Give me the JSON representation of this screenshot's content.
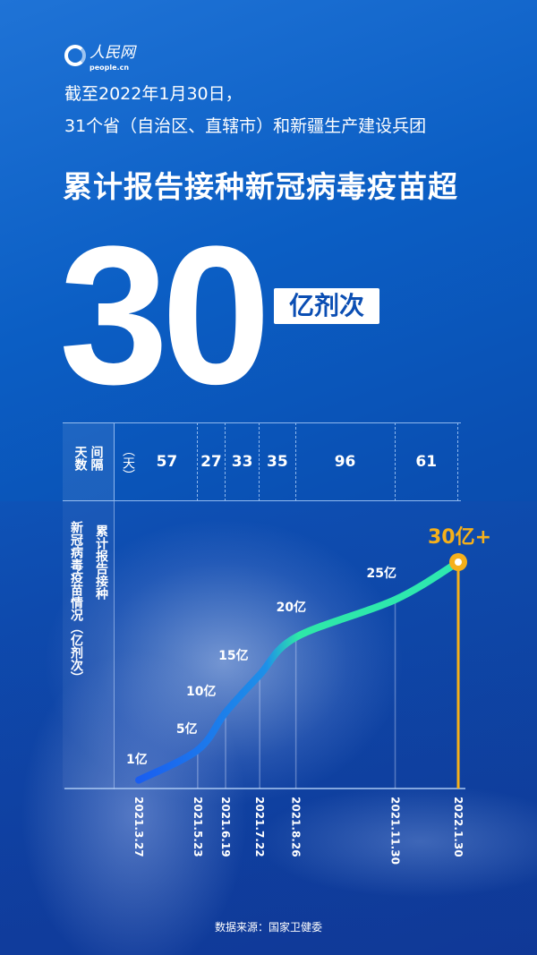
{
  "logo": {
    "name": "人民网",
    "site": "people.cn"
  },
  "header": {
    "line1": "截至2022年1月30日，",
    "line2": "31个省（自治区、直辖市）和新疆生产建设兵团",
    "headline": "累计报告接种新冠病毒疫苗超",
    "big_number": "30",
    "badge": "亿剂次"
  },
  "table": {
    "row_label": "间隔天数",
    "unit": "（天）",
    "intervals": [
      "57",
      "27",
      "33",
      "35",
      "96",
      "61"
    ]
  },
  "source": "数据来源：国家卫健委",
  "colors": {
    "background": "#0b5ec4",
    "line_start": "#1a5ef0",
    "line_end": "#2ee8a8",
    "highlight": "#f5b01a"
  },
  "chart_data": {
    "type": "line",
    "ylabel": "累计报告接种新冠病毒疫苗情况（亿剂次）",
    "x": [
      "2021.3.27",
      "2021.5.23",
      "2021.6.19",
      "2021.7.22",
      "2021.8.26",
      "2021.11.30",
      "2022.1.30"
    ],
    "values": [
      1,
      5,
      10,
      15,
      20,
      25,
      30
    ],
    "labels": [
      "1亿",
      "5亿",
      "10亿",
      "15亿",
      "20亿",
      "25亿",
      "30亿+"
    ],
    "grid": false
  }
}
